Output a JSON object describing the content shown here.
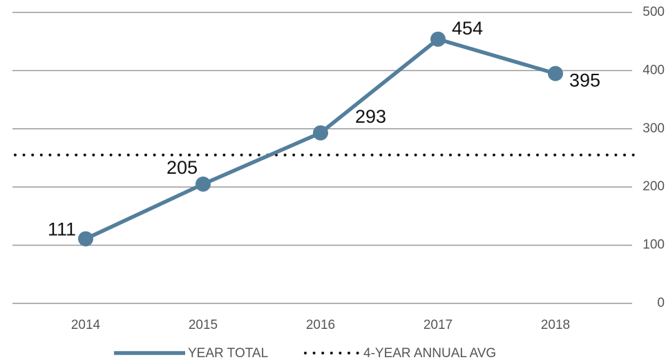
{
  "chart_data": {
    "type": "line",
    "categories": [
      "2014",
      "2015",
      "2016",
      "2017",
      "2018"
    ],
    "series": [
      {
        "name": "YEAR TOTAL",
        "color": "#537f9c",
        "values": [
          111,
          205,
          293,
          454,
          395
        ]
      }
    ],
    "reference_line": {
      "name": "4-YEAR ANNUAL AVG",
      "value": 255,
      "color": "#111111"
    },
    "ylim": [
      0,
      500
    ],
    "yticks": [
      0,
      100,
      200,
      300,
      400,
      500
    ],
    "grid": true,
    "y_axis_side": "right",
    "legend": "bottom"
  }
}
